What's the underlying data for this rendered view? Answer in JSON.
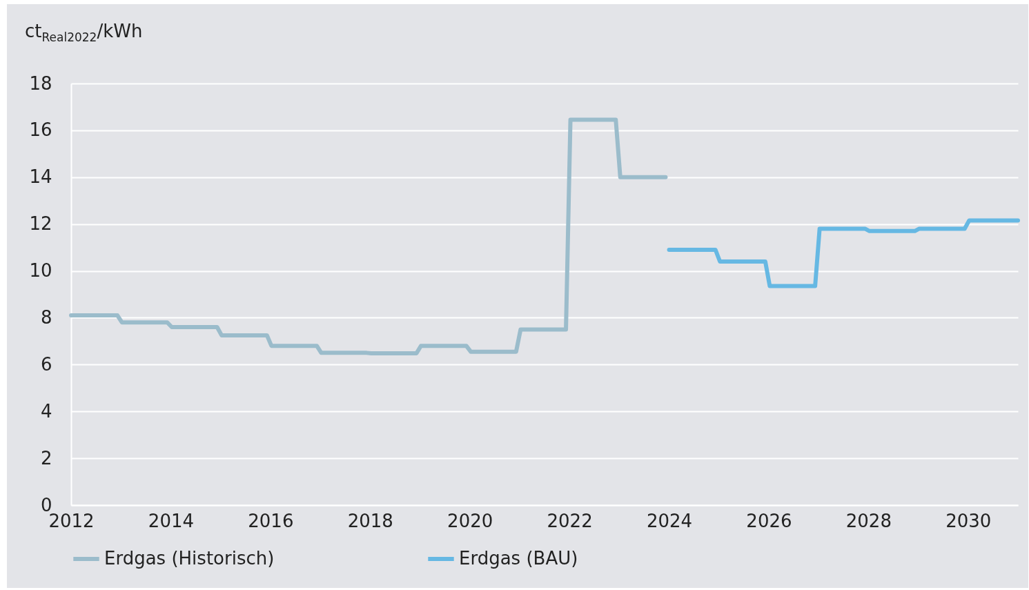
{
  "chart_data": {
    "type": "line",
    "ylabel": "ct$_{Real2022}$/kWh",
    "xlim": [
      2012,
      2031
    ],
    "xticks": [
      2012,
      2014,
      2016,
      2018,
      2020,
      2022,
      2024,
      2026,
      2028,
      2030
    ],
    "ylim": [
      0,
      18
    ],
    "yticks": [
      0,
      2,
      4,
      6,
      8,
      10,
      12,
      14,
      16,
      18
    ],
    "grid": "y",
    "legend": "bottom",
    "line_style": "solid",
    "marker": "none",
    "series": [
      {
        "name": "Erdgas (Historisch)",
        "color": "#9bbccb",
        "x": [
          2012,
          2012.93,
          2013.02,
          2013.93,
          2014.02,
          2014.93,
          2015.02,
          2015.93,
          2016.02,
          2016.93,
          2017.02,
          2017.93,
          2018.02,
          2018.93,
          2019.02,
          2019.93,
          2020.02,
          2020.93,
          2021.02,
          2021.93,
          2022.02,
          2022.93,
          2023.02,
          2023.93
        ],
        "values": [
          8.1,
          8.1,
          7.8,
          7.8,
          7.6,
          7.6,
          7.25,
          7.25,
          6.8,
          6.8,
          6.5,
          6.5,
          6.48,
          6.48,
          6.8,
          6.8,
          6.55,
          6.55,
          7.5,
          7.5,
          16.45,
          16.45,
          14,
          14
        ]
      },
      {
        "name": "Erdgas (BAU)",
        "color": "#66b8e3",
        "x": [
          2024,
          2024.93,
          2025.02,
          2025.93,
          2026.02,
          2026.93,
          2027.02,
          2027.93,
          2028.02,
          2028.93,
          2029.02,
          2029.93,
          2030.02,
          2031
        ],
        "values": [
          10.9,
          10.9,
          10.4,
          10.4,
          9.35,
          9.35,
          11.8,
          11.8,
          11.7,
          11.7,
          11.8,
          11.8,
          12.15,
          12.15
        ]
      }
    ]
  }
}
